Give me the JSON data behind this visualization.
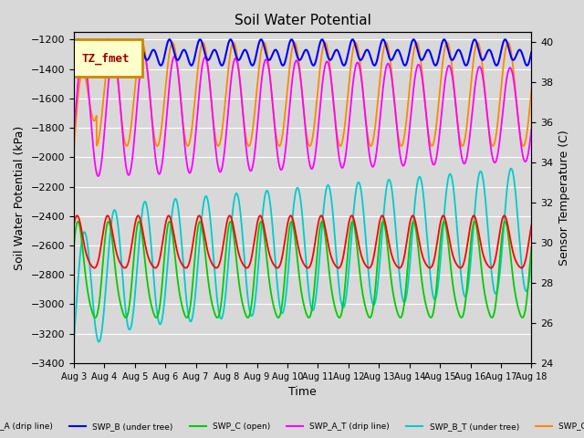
{
  "title": "Soil Water Potential",
  "ylabel_left": "Soil Water Potential (kPa)",
  "ylabel_right": "Sensor Temperature (C)",
  "xlabel": "Time",
  "ylim_left": [
    -3400,
    -1150
  ],
  "ylim_right": [
    24,
    40.5
  ],
  "bg_color": "#d8d8d8",
  "plot_bg_color": "#d8d8d8",
  "legend_label": "TZ_fmet",
  "legend_box_color": "#ffffcc",
  "legend_box_edge": "#cc8800",
  "x_start": 3,
  "x_end": 18,
  "x_ticks": [
    3,
    4,
    5,
    6,
    7,
    8,
    9,
    10,
    11,
    12,
    13,
    14,
    15,
    16,
    17,
    18
  ],
  "x_tick_labels": [
    "Aug 3",
    "Aug 4",
    "Aug 5",
    "Aug 6",
    "Aug 7",
    "Aug 8",
    "Aug 9",
    "Aug 10",
    "Aug 11",
    "Aug 12",
    "Aug 13",
    "Aug 14",
    "Aug 15",
    "Aug 16",
    "Aug 17",
    "Aug 18"
  ],
  "yticks_left": [
    -3400,
    -3200,
    -3000,
    -2800,
    -2600,
    -2400,
    -2200,
    -2000,
    -1800,
    -1600,
    -1400,
    -1200
  ],
  "yticks_right": [
    24,
    26,
    28,
    30,
    32,
    34,
    36,
    38,
    40
  ],
  "series": [
    {
      "name": "SWP_A (drip line)",
      "color": "#ff0000"
    },
    {
      "name": "SWP_B (under tree)",
      "color": "#0000ff"
    },
    {
      "name": "SWP_C (open)",
      "color": "#00cc00"
    },
    {
      "name": "SWP_A_T (drip line)",
      "color": "#ff00ff"
    },
    {
      "name": "SWP_B_T (under tree)",
      "color": "#00cccc"
    },
    {
      "name": "SWP_C_T (open)",
      "color": "#ff8800"
    }
  ]
}
